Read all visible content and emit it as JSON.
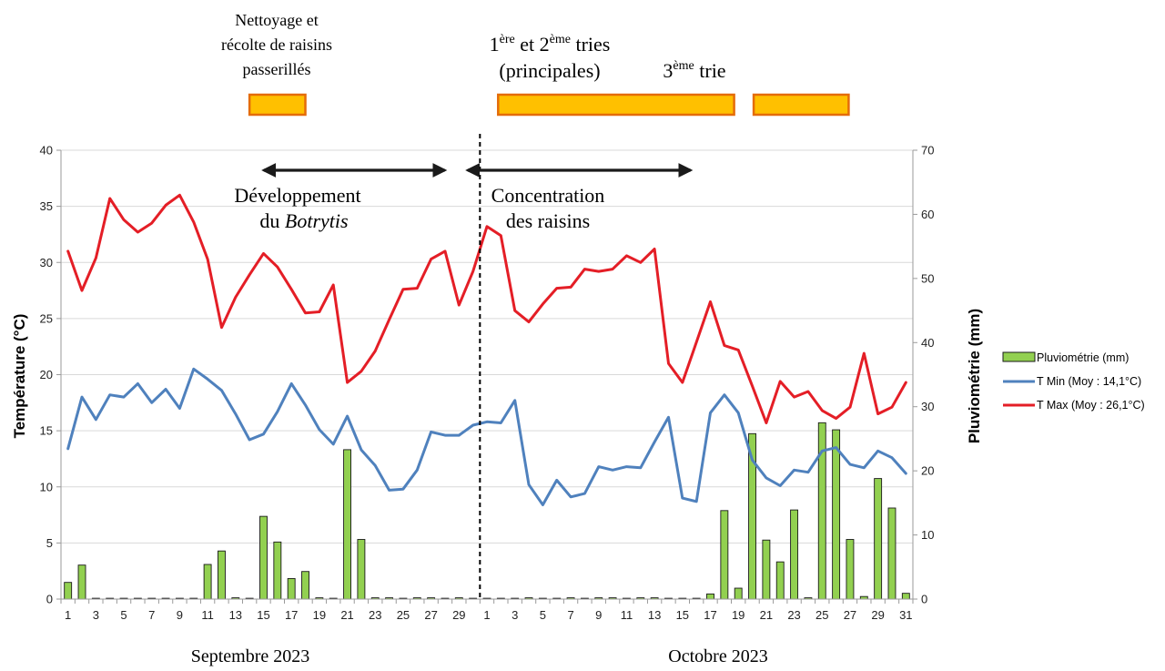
{
  "chart_data": {
    "type": "bar+line",
    "title": "",
    "ylabel_left": "Température (°C)",
    "ylabel_right": "Pluviométrie (mm)",
    "ylim_left": [
      0,
      40
    ],
    "ylim_right": [
      0,
      70
    ],
    "yticks_left": [
      0,
      5,
      10,
      15,
      20,
      25,
      30,
      35,
      40
    ],
    "yticks_right": [
      0,
      10,
      20,
      30,
      40,
      50,
      60,
      70
    ],
    "grid": "horizontal",
    "legend_placement": "right",
    "x_tick_labels": [
      "1",
      "3",
      "5",
      "7",
      "9",
      "11",
      "13",
      "15",
      "17",
      "19",
      "21",
      "23",
      "25",
      "27",
      "29",
      "1",
      "3",
      "5",
      "7",
      "9",
      "11",
      "13",
      "15",
      "17",
      "19",
      "21",
      "23",
      "25",
      "27",
      "29",
      "31"
    ],
    "month_labels": [
      "Septembre 2023",
      "Octobre 2023"
    ],
    "days": [
      "1",
      "2",
      "3",
      "4",
      "5",
      "6",
      "7",
      "8",
      "9",
      "10",
      "11",
      "12",
      "13",
      "14",
      "15",
      "16",
      "17",
      "18",
      "19",
      "20",
      "21",
      "22",
      "23",
      "24",
      "25",
      "26",
      "27",
      "28",
      "29",
      "30",
      "1",
      "2",
      "3",
      "4",
      "5",
      "6",
      "7",
      "8",
      "9",
      "10",
      "11",
      "12",
      "13",
      "14",
      "15",
      "16",
      "17",
      "18",
      "19",
      "20",
      "21",
      "22",
      "23",
      "24",
      "25",
      "26",
      "27",
      "28",
      "29",
      "30",
      "31"
    ],
    "series": [
      {
        "name": "Pluviométrie (mm)",
        "type": "bar",
        "axis": "right",
        "color": "#92D050",
        "values": [
          2.6,
          5.3,
          0,
          0,
          0,
          0,
          0,
          0,
          0,
          0,
          5.4,
          7.5,
          0.2,
          0,
          12.9,
          8.9,
          3.2,
          4.3,
          0.2,
          0,
          23.3,
          9.3,
          0.2,
          0.2,
          0,
          0.2,
          0.2,
          0,
          0.2,
          0,
          0,
          0,
          0,
          0.2,
          0,
          0,
          0.2,
          0,
          0.2,
          0.2,
          0,
          0.2,
          0.2,
          0,
          0,
          0,
          0.8,
          13.8,
          1.7,
          25.8,
          9.2,
          5.8,
          13.9,
          0.2,
          27.5,
          26.4,
          9.3,
          0.4,
          18.8,
          14.2,
          0.9
        ]
      },
      {
        "name": "T Min (Moy : 14,1°C)",
        "type": "line",
        "axis": "left",
        "color": "#4F81BD",
        "values": [
          13.4,
          18.0,
          16.0,
          18.2,
          18.0,
          19.2,
          17.5,
          18.7,
          17.0,
          20.5,
          19.6,
          18.6,
          16.5,
          14.2,
          14.7,
          16.7,
          19.2,
          17.3,
          15.1,
          13.8,
          16.3,
          13.3,
          11.9,
          9.7,
          9.8,
          11.5,
          14.9,
          14.6,
          14.6,
          15.5,
          15.8,
          15.7,
          17.7,
          10.2,
          8.4,
          10.6,
          9.1,
          9.4,
          11.8,
          11.5,
          11.8,
          11.7,
          14.0,
          16.2,
          9.0,
          8.7,
          16.6,
          18.2,
          16.6,
          12.4,
          10.8,
          10.1,
          11.5,
          11.3,
          13.2,
          13.5,
          12.0,
          11.7,
          13.2,
          12.6,
          11.2
        ]
      },
      {
        "name": "T Max (Moy : 26,1°C)",
        "type": "line",
        "axis": "left",
        "color": "#E41E26",
        "values": [
          31.0,
          27.5,
          30.4,
          35.7,
          33.8,
          32.7,
          33.5,
          35.1,
          36.0,
          33.6,
          30.3,
          24.2,
          26.9,
          28.9,
          30.8,
          29.6,
          27.6,
          25.5,
          25.6,
          28.0,
          19.3,
          20.3,
          22.1,
          24.9,
          27.6,
          27.7,
          30.3,
          31.0,
          26.2,
          29.2,
          33.2,
          32.4,
          25.7,
          24.7,
          26.3,
          27.7,
          27.8,
          29.4,
          29.2,
          29.4,
          30.6,
          30.0,
          31.2,
          21.0,
          19.3,
          22.9,
          26.5,
          22.6,
          22.2,
          19.0,
          15.7,
          19.4,
          18.0,
          18.5,
          16.8,
          16.1,
          17.1,
          21.9,
          16.5,
          17.1,
          19.3
        ]
      }
    ],
    "divider_after_day_index": 30,
    "phases": [
      {
        "text_lines": [
          "Nettoyage et",
          "récolte de raisins",
          "passerillés"
        ],
        "start_day_index": 13.5,
        "end_day_index": 17.5
      },
      {
        "text_main": "1",
        "sup1": "ère",
        "mid": " et 2",
        "sup2": "ème",
        "tail": " tries",
        "line2": "(principales)",
        "start_day_index": 31.3,
        "end_day_index": 48.2
      },
      {
        "text_main": "3",
        "sup": "ème",
        "tail": " trie",
        "start_day_index": 49.6,
        "end_day_index": 56.4
      }
    ],
    "periods": [
      {
        "line1": "Développement",
        "line2_pre": "du ",
        "line2_it": "Botrytis",
        "start_day_index": 14.0,
        "end_day_index": 28.0
      },
      {
        "line1": "Concentration",
        "line2": "des raisins",
        "start_day_index": 28.6,
        "end_day_index": 45.6
      }
    ]
  }
}
